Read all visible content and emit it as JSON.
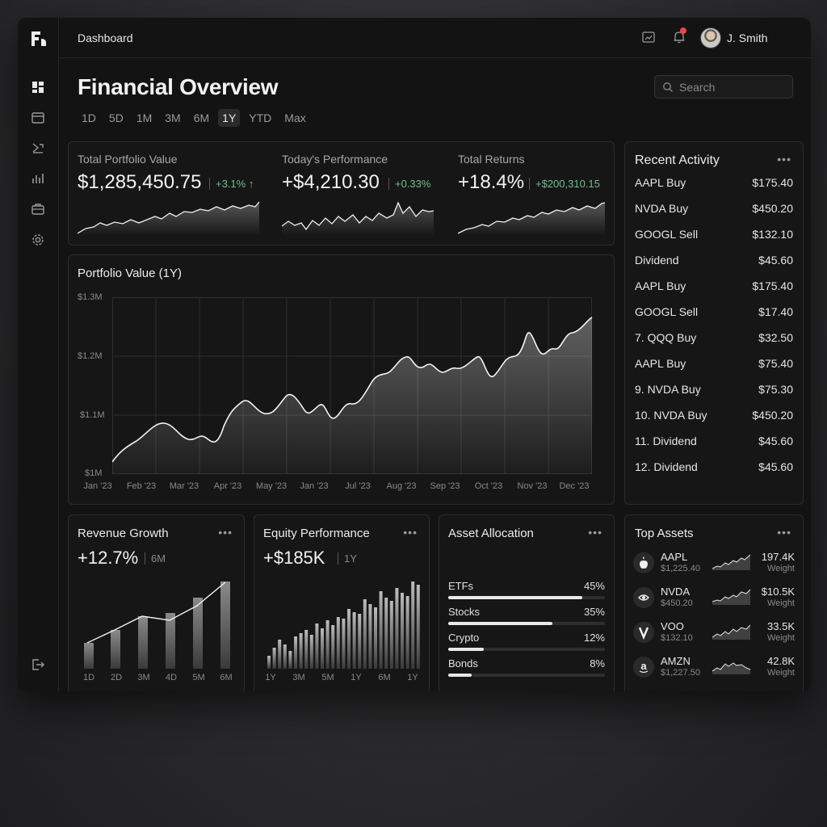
{
  "header": {
    "breadcrumb": "Dashboard",
    "user": "J. Smith"
  },
  "page": {
    "title": "Financial Overview",
    "search_placeholder": "Search"
  },
  "ranges": [
    "1D",
    "5D",
    "1M",
    "3M",
    "6M",
    "1Y",
    "YTD",
    "Max"
  ],
  "active_range": "1Y",
  "kpis": [
    {
      "label": "Total Portfolio Value",
      "value": "$1,285,450.75",
      "change": "+3.1% ↑"
    },
    {
      "label": "Today's Performance",
      "value": "+$4,210.30",
      "change": "+0.33%"
    },
    {
      "label": "Total Returns",
      "value": "+18.4%",
      "change": "+$200,310.15"
    }
  ],
  "portfolio_chart": {
    "title": "Portfolio Value (1Y)",
    "y_ticks": [
      "$1.3M",
      "$1.2M",
      "$1.1M",
      "$1M"
    ],
    "x_ticks": [
      "Jan '23",
      "Feb '23",
      "Mar '23",
      "Apr '23",
      "May '23",
      "Jan '23",
      "Jul '23",
      "Aug '23",
      "Sep '23",
      "Oct '23",
      "Nov '23",
      "Dec '23"
    ]
  },
  "recent_activity": {
    "title": "Recent Activity",
    "items": [
      {
        "name": "AAPL Buy",
        "amount": "$175.40"
      },
      {
        "name": "NVDA Buy",
        "amount": "$450.20"
      },
      {
        "name": "GOOGL Sell",
        "amount": "$132.10"
      },
      {
        "name": "Dividend",
        "amount": "$45.60"
      },
      {
        "name": "AAPL Buy",
        "amount": "$175.40"
      },
      {
        "name": "GOOGL Sell",
        "amount": "$17.40"
      },
      {
        "name": "7. QQQ Buy",
        "amount": "$32.50"
      },
      {
        "name": "AAPL Buy",
        "amount": "$75.40"
      },
      {
        "name": "9. NVDA Buy",
        "amount": "$75.30"
      },
      {
        "name": "10. NVDA Buy",
        "amount": "$450.20"
      },
      {
        "name": "11. Dividend",
        "amount": "$45.60"
      },
      {
        "name": "12. Dividend",
        "amount": "$45.60"
      }
    ]
  },
  "revenue": {
    "title": "Revenue Growth",
    "value": "+12.7%",
    "period": "6M",
    "x_ticks": [
      "1D",
      "2D",
      "3M",
      "4D",
      "5M",
      "6M"
    ]
  },
  "equity": {
    "title": "Equity Performance",
    "value": "+$185K",
    "period": "1Y",
    "x_ticks": [
      "1Y",
      "3M",
      "5M",
      "1Y",
      "6M",
      "1Y"
    ]
  },
  "allocation": {
    "title": "Asset Allocation",
    "items": [
      {
        "name": "ETFs",
        "pct": "45%",
        "value": 45
      },
      {
        "name": "Stocks",
        "pct": "35%",
        "value": 35
      },
      {
        "name": "Crypto",
        "pct": "12%",
        "value": 12
      },
      {
        "name": "Bonds",
        "pct": "8%",
        "value": 8
      }
    ]
  },
  "top_assets": {
    "title": "Top Assets",
    "items": [
      {
        "symbol": "AAPL",
        "price": "$1,225.40",
        "value": "197.4K",
        "weight_label": "Weight",
        "logo": "apple-logo"
      },
      {
        "symbol": "NVDA",
        "price": "$450.20",
        "value": "$10.5K",
        "weight_label": "Weight",
        "logo": "nvidia-logo"
      },
      {
        "symbol": "VOO",
        "price": "$132.10",
        "value": "33.5K",
        "weight_label": "Weight",
        "logo": "vanguard-logo"
      },
      {
        "symbol": "AMZN",
        "price": "$1,227.50",
        "value": "42.8K",
        "weight_label": "Weight",
        "logo": "amazon-logo"
      }
    ]
  },
  "colors": {
    "background": "#131313",
    "card": "#161616",
    "border": "#2d2d2d",
    "positive": "#6fbf8a",
    "notification": "#e5484d"
  }
}
